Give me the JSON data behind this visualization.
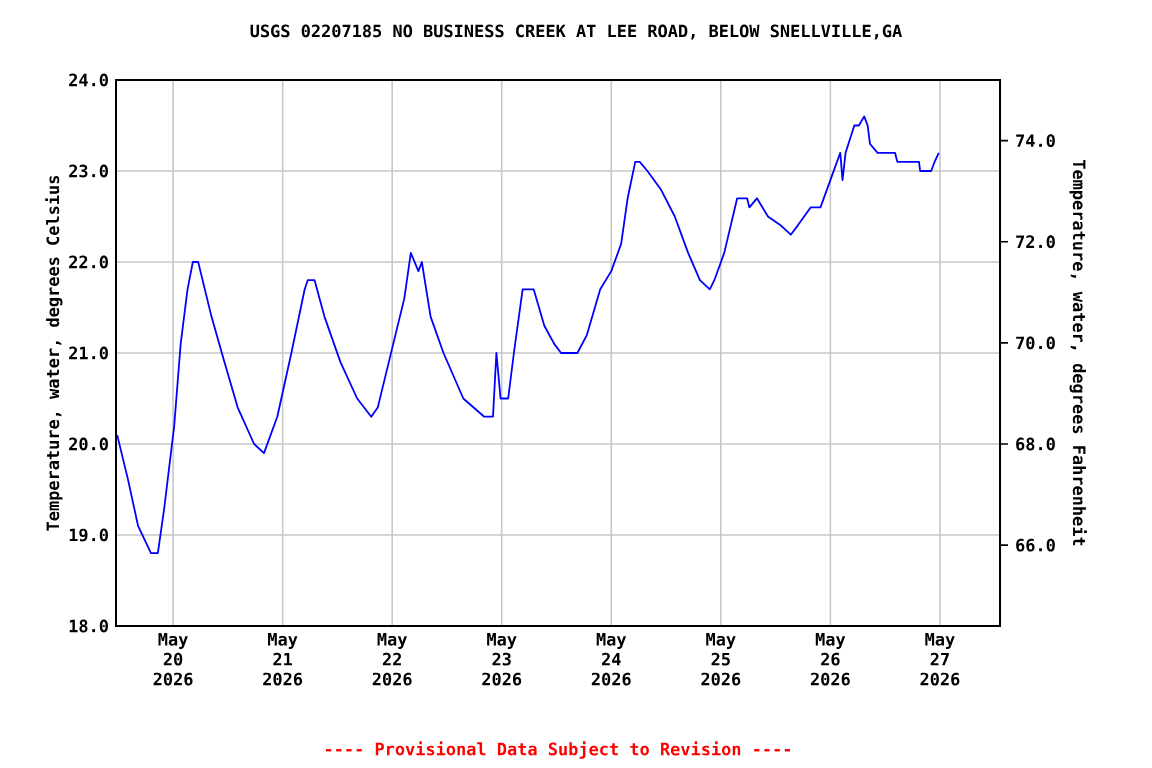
{
  "chart_data": {
    "type": "line",
    "title": "USGS 02207185 NO BUSINESS CREEK AT LEE ROAD, BELOW SNELLVILLE,GA",
    "ylabel": "Temperature, water, degrees Celsius",
    "y2label": "Temperature, water, degrees Fahrenheit",
    "annotations": [
      "---- Provisional Data Subject to Revision ----"
    ],
    "x": [
      "2026-05-19T11:45",
      "2026-05-19T14:10",
      "2026-05-19T16:20",
      "2026-05-19T19:10",
      "2026-05-19T20:40",
      "2026-05-19T22:05",
      "2026-05-20T00:15",
      "2026-05-20T01:40",
      "2026-05-20T03:10",
      "2026-05-20T04:20",
      "2026-05-20T05:30",
      "2026-05-20T08:25",
      "2026-05-20T11:15",
      "2026-05-20T14:10",
      "2026-05-20T17:45",
      "2026-05-20T19:55",
      "2026-05-20T22:50",
      "2026-05-21T01:55",
      "2026-05-21T04:50",
      "2026-05-21T05:30",
      "2026-05-21T07:00",
      "2026-05-21T09:10",
      "2026-05-21T12:40",
      "2026-05-21T16:20",
      "2026-05-21T19:25",
      "2026-05-21T20:50",
      "2026-05-21T23:45",
      "2026-05-22T02:40",
      "2026-05-22T04:05",
      "2026-05-22T05:45",
      "2026-05-22T06:30",
      "2026-05-22T08:25",
      "2026-05-22T11:15",
      "2026-05-22T15:35",
      "2026-05-22T20:10",
      "2026-05-22T22:05",
      "2026-05-22T22:50",
      "2026-05-22T23:45",
      "2026-05-23T01:25",
      "2026-05-23T02:40",
      "2026-05-23T04:35",
      "2026-05-23T07:00",
      "2026-05-23T09:20",
      "2026-05-23T11:30",
      "2026-05-23T13:00",
      "2026-05-23T16:35",
      "2026-05-23T18:40",
      "2026-05-23T21:35",
      "2026-05-24T00:00",
      "2026-05-24T02:10",
      "2026-05-24T03:35",
      "2026-05-24T05:15",
      "2026-05-24T06:15",
      "2026-05-24T07:55",
      "2026-05-24T10:50",
      "2026-05-24T13:55",
      "2026-05-24T16:50",
      "2026-05-24T19:25",
      "2026-05-24T21:35",
      "2026-05-24T22:35",
      "2026-05-25T00:45",
      "2026-05-25T02:10",
      "2026-05-25T03:35",
      "2026-05-25T05:45",
      "2026-05-25T06:15",
      "2026-05-25T07:55",
      "2026-05-25T10:20",
      "2026-05-25T13:10",
      "2026-05-25T15:20",
      "2026-05-25T16:50",
      "2026-05-25T19:40",
      "2026-05-25T21:50",
      "2026-05-26T00:00",
      "2026-05-26T02:10",
      "2026-05-26T02:40",
      "2026-05-26T03:20",
      "2026-05-26T05:15",
      "2026-05-26T06:15",
      "2026-05-26T07:25",
      "2026-05-26T08:10",
      "2026-05-26T08:40",
      "2026-05-26T10:20",
      "2026-05-26T14:10",
      "2026-05-26T14:40",
      "2026-05-26T19:25",
      "2026-05-26T19:40",
      "2026-05-26T22:05",
      "2026-05-26T22:50",
      "2026-05-26T23:45"
    ],
    "series": [
      {
        "color": "#0000ff",
        "values": [
          20.1,
          19.6,
          19.1,
          18.8,
          18.8,
          19.3,
          20.2,
          21.1,
          21.7,
          22.0,
          22.0,
          21.4,
          20.9,
          20.4,
          20.0,
          19.9,
          20.3,
          21.0,
          21.7,
          21.8,
          21.8,
          21.4,
          20.9,
          20.5,
          20.3,
          20.4,
          21.0,
          21.6,
          22.1,
          21.9,
          22.0,
          21.4,
          21.0,
          20.5,
          20.3,
          20.3,
          21.0,
          20.5,
          20.5,
          21.0,
          21.7,
          21.7,
          21.3,
          21.1,
          21.0,
          21.0,
          21.2,
          21.7,
          21.9,
          22.2,
          22.7,
          23.1,
          23.1,
          23.0,
          22.8,
          22.5,
          22.1,
          21.8,
          21.7,
          21.8,
          22.1,
          22.4,
          22.7,
          22.7,
          22.6,
          22.7,
          22.5,
          22.4,
          22.3,
          22.4,
          22.6,
          22.6,
          22.9,
          23.2,
          22.9,
          23.2,
          23.5,
          23.5,
          23.6,
          23.5,
          23.3,
          23.2,
          23.2,
          23.1,
          23.1,
          23.0,
          23.0,
          23.1,
          23.2
        ]
      }
    ],
    "xlim": [
      "2026-05-19T11:30",
      "2026-05-27T13:10"
    ],
    "xticks": [
      {
        "value": "2026-05-20",
        "label": "May 20 2026"
      },
      {
        "value": "2026-05-21",
        "label": "May 21 2026"
      },
      {
        "value": "2026-05-22",
        "label": "May 22 2026"
      },
      {
        "value": "2026-05-23",
        "label": "May 23 2026"
      },
      {
        "value": "2026-05-24",
        "label": "May 24 2026"
      },
      {
        "value": "2026-05-25",
        "label": "May 25 2026"
      },
      {
        "value": "2026-05-26",
        "label": "May 26 2026"
      },
      {
        "value": "2026-05-27",
        "label": "May 27 2026"
      }
    ],
    "ylim": [
      18,
      24
    ],
    "yticks": [
      {
        "value": 18,
        "label": "18.0"
      },
      {
        "value": 19,
        "label": "19.0"
      },
      {
        "value": 20,
        "label": "20.0"
      },
      {
        "value": 21,
        "label": "21.0"
      },
      {
        "value": 22,
        "label": "22.0"
      },
      {
        "value": 23,
        "label": "23.0"
      },
      {
        "value": 24,
        "label": "24.0"
      }
    ],
    "y2lim": [
      64.4,
      75.2
    ],
    "y2ticks": [
      {
        "value": 66,
        "label": "66.0"
      },
      {
        "value": 68,
        "label": "68.0"
      },
      {
        "value": 70,
        "label": "70.0"
      },
      {
        "value": 72,
        "label": "72.0"
      },
      {
        "value": 74,
        "label": "74.0"
      }
    ],
    "grid": true,
    "marker": "none",
    "line_style": "solid"
  }
}
